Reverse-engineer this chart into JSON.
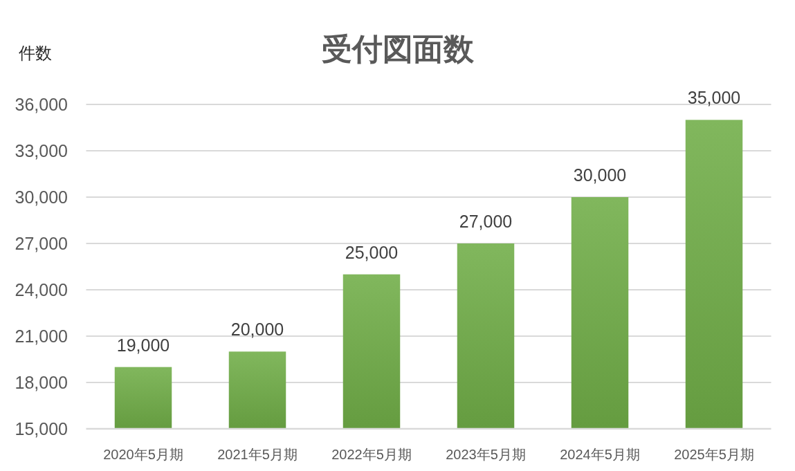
{
  "chart_data": {
    "type": "bar",
    "title": "受付図面数",
    "ylabel": "件数",
    "categories": [
      "2020年5月期",
      "2021年5月期",
      "2022年5月期",
      "2023年5月期",
      "2024年5月期",
      "2025年5月期"
    ],
    "values": [
      19000,
      20000,
      25000,
      27000,
      30000,
      35000
    ],
    "value_labels": [
      "19,000",
      "20,000",
      "25,000",
      "27,000",
      "30,000",
      "35,000"
    ],
    "color": "#70ad47",
    "ylim": [
      15000,
      36000
    ],
    "yticks": [
      {
        "value": 15000,
        "label": "15,000"
      },
      {
        "value": 18000,
        "label": "18,000"
      },
      {
        "value": 21000,
        "label": "21,000"
      },
      {
        "value": 24000,
        "label": "24,000"
      },
      {
        "value": 27000,
        "label": "27,000"
      },
      {
        "value": 30000,
        "label": "30,000"
      },
      {
        "value": 33000,
        "label": "33,000"
      },
      {
        "value": 36000,
        "label": "36,000"
      }
    ],
    "grid": "y"
  }
}
